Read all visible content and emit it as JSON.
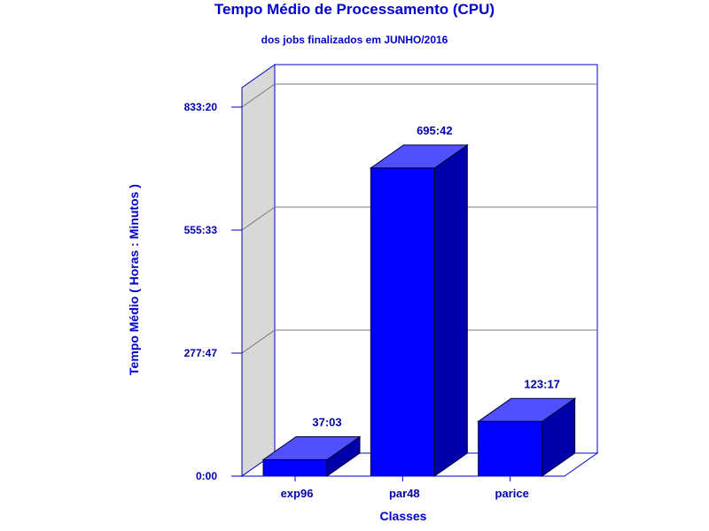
{
  "chart_data": {
    "type": "bar",
    "title": "Tempo Médio de Processamento (CPU)",
    "subtitle": "dos jobs finalizados em JUNHO/2016",
    "xlabel": "Classes",
    "ylabel": "Tempo Médio ( Horas : Minutos )",
    "categories": [
      "exp96",
      "par48",
      "parice"
    ],
    "values": [
      "37:03",
      "695:42",
      "123:17"
    ],
    "yticks": [
      "0:00",
      "277:47",
      "555:33",
      "833:20"
    ],
    "ylim": [
      "0:00",
      "833:20"
    ],
    "grid": true,
    "three_d": true,
    "colors": {
      "bar_front": "#0000ff",
      "bar_top": "#5050ff",
      "bar_side": "#0000aa",
      "frame": "#0000cc",
      "wall": "#d8d8d8"
    }
  }
}
